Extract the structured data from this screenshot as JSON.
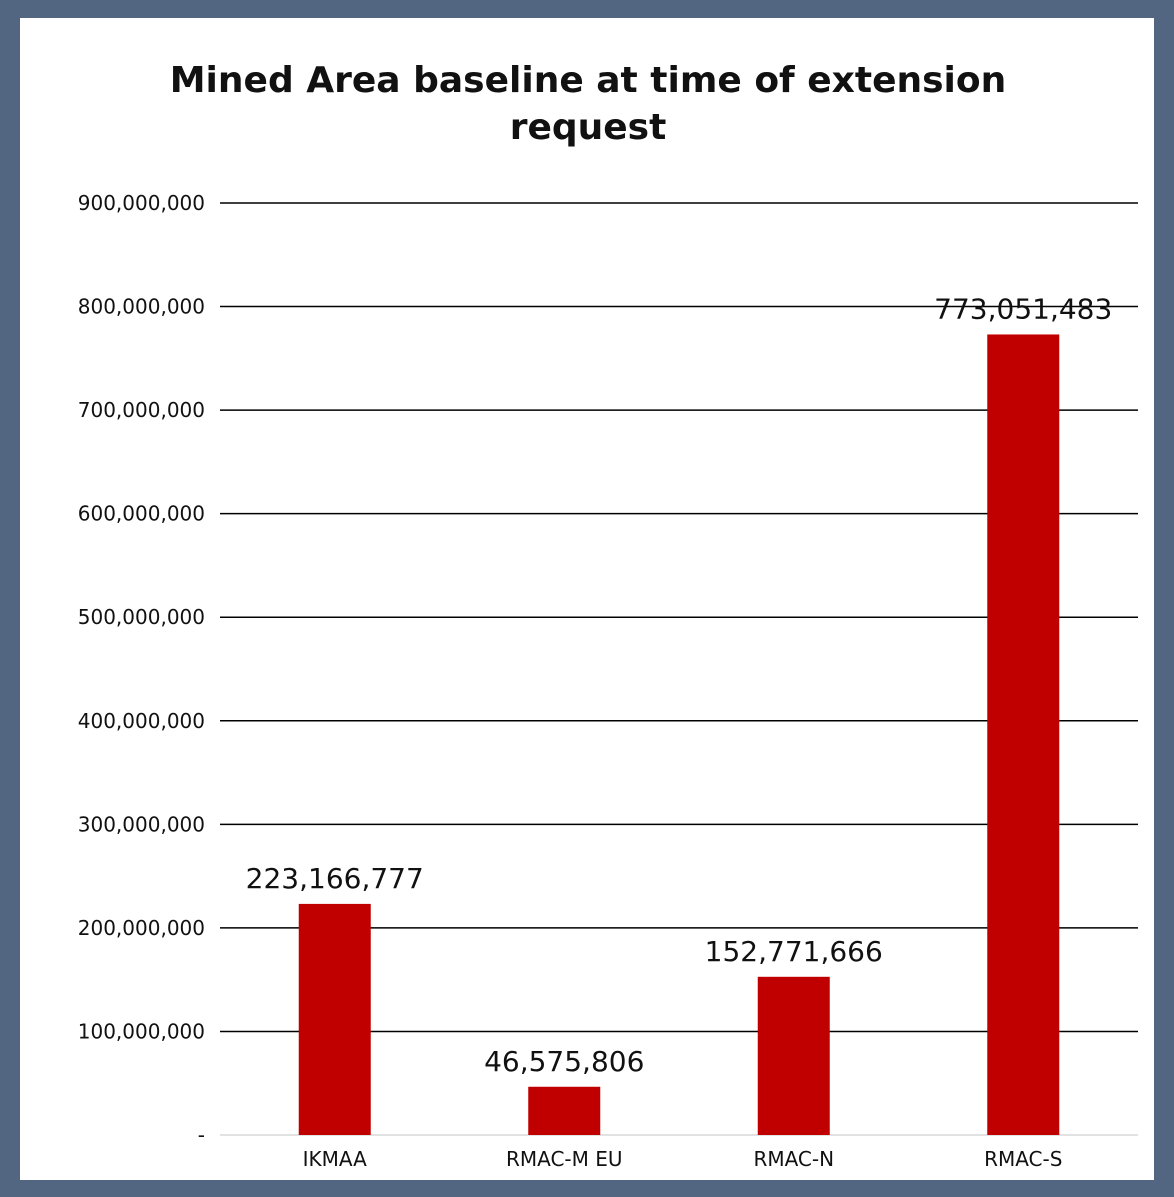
{
  "chart_data": {
    "type": "bar",
    "title_lines": [
      "Mined Area baseline at time of extension",
      "request"
    ],
    "categories": [
      "IKMAA",
      "RMAC-M EU",
      "RMAC-N",
      "RMAC-S"
    ],
    "values": [
      223166777,
      46575806,
      152771666,
      773051483
    ],
    "value_labels": [
      "223,166,777",
      "46,575,806",
      "152,771,666",
      "773,051,483"
    ],
    "ylim": [
      0,
      900000000
    ],
    "yticks": [
      0,
      100000000,
      200000000,
      300000000,
      400000000,
      500000000,
      600000000,
      700000000,
      800000000,
      900000000
    ],
    "ytick_labels": [
      "-",
      "100,000,000",
      "200,000,000",
      "300,000,000",
      "400,000,000",
      "500,000,000",
      "600,000,000",
      "700,000,000",
      "800,000,000",
      "900,000,000"
    ],
    "grid": true,
    "legend": "none",
    "bar_color": "#c00000",
    "background_color": "#536681"
  }
}
